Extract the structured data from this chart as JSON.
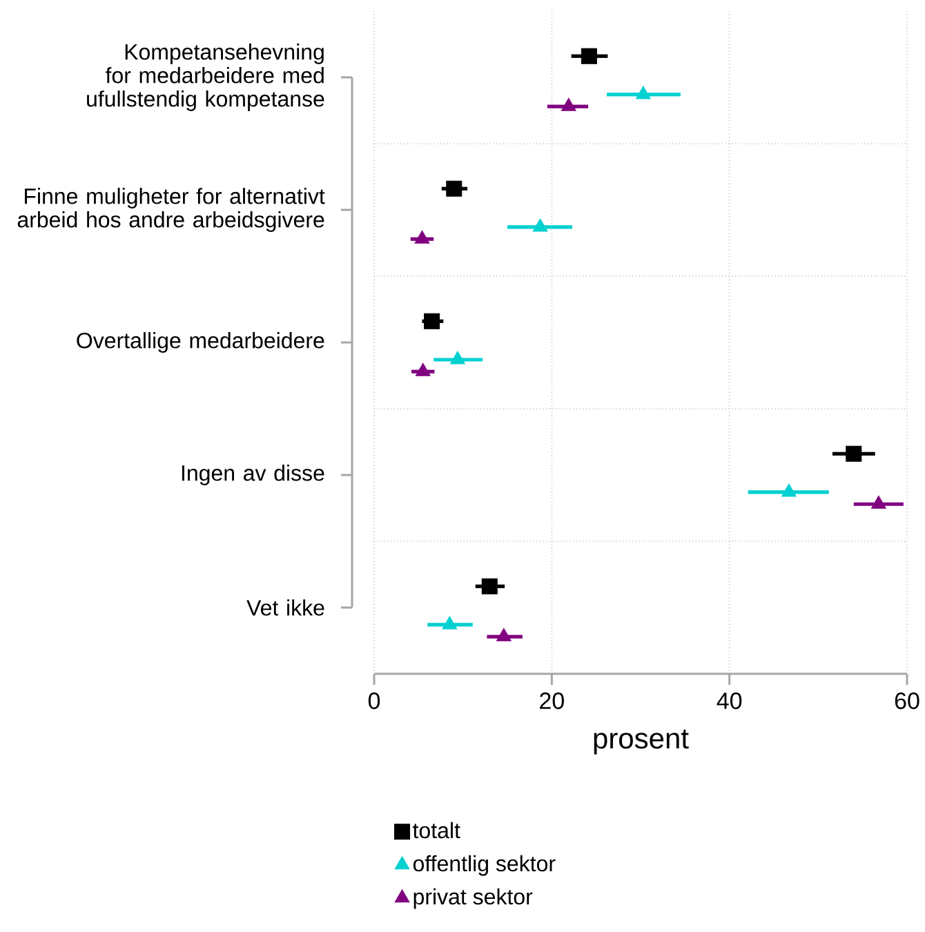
{
  "chart_data": {
    "type": "scatter",
    "orientation": "horizontal",
    "xlabel": "prosent",
    "categories": [
      "Kompetansehevning for medarbeidere med ufullstendig kompetanse",
      "Finne muligheter for alternativt arbeid hos andre arbeidsgivere",
      "Overtallige medarbeidere",
      "Ingen av disse",
      "Vet ikke"
    ],
    "series": [
      {
        "name": "totalt",
        "color": "#000000",
        "marker": "square",
        "values": [
          24.2,
          9.0,
          6.5,
          54.0,
          13.0
        ],
        "errors": [
          [
            22.2,
            26.3
          ],
          [
            7.6,
            10.5
          ],
          [
            5.4,
            7.8
          ],
          [
            51.6,
            56.4
          ],
          [
            11.4,
            14.7
          ]
        ]
      },
      {
        "name": "offentlig sektor",
        "color": "#00d0d0",
        "marker": "triangle",
        "values": [
          30.3,
          18.7,
          9.4,
          46.7,
          8.5
        ],
        "errors": [
          [
            26.2,
            34.5
          ],
          [
            15.0,
            22.3
          ],
          [
            6.7,
            12.2
          ],
          [
            42.1,
            51.2
          ],
          [
            6.0,
            11.1
          ]
        ]
      },
      {
        "name": "privat sektor",
        "color": "#800080",
        "marker": "triangle",
        "values": [
          21.9,
          5.4,
          5.5,
          56.8,
          14.6
        ],
        "errors": [
          [
            19.5,
            24.1
          ],
          [
            4.1,
            6.7
          ],
          [
            4.2,
            6.8
          ],
          [
            54.0,
            59.6
          ],
          [
            12.7,
            16.7
          ]
        ]
      }
    ],
    "xlim": [
      0,
      60
    ],
    "xticks": [
      0,
      20,
      40,
      60
    ],
    "grid": true,
    "legend": "bottom"
  }
}
